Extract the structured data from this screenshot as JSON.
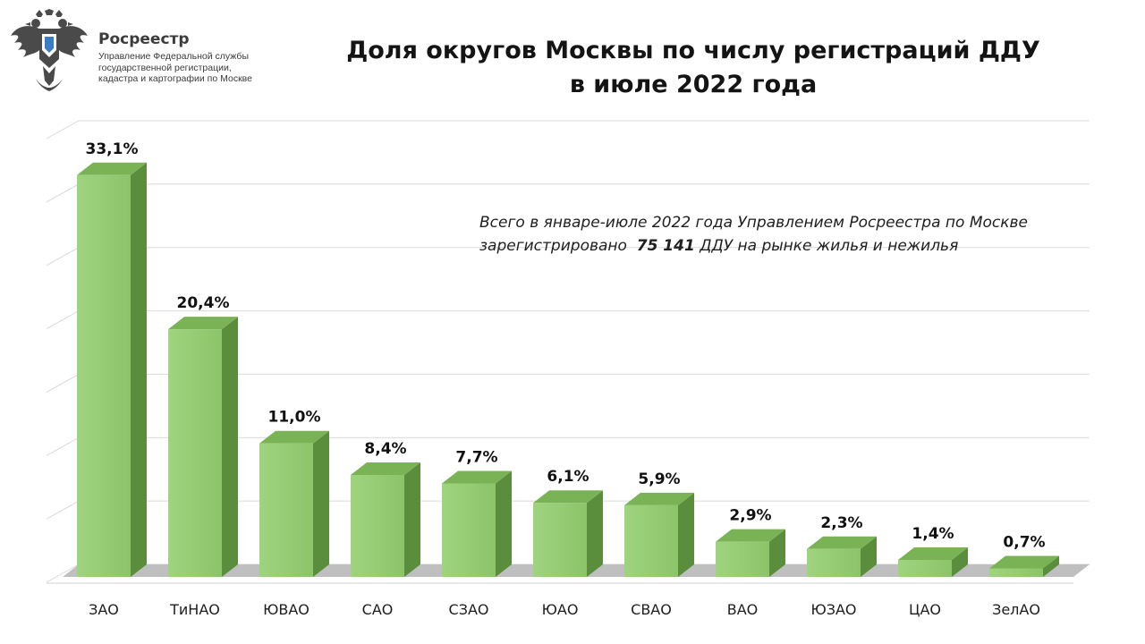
{
  "header": {
    "org_name": "Росреестр",
    "org_subtitle": [
      "Управление Федеральной службы",
      "государственной регистрации,",
      "кадастра и картографии по Москве"
    ],
    "emblem_icon": "double-headed-eagle-emblem-icon"
  },
  "note": {
    "line1": "Всего в январе-июле 2022 года Управлением Росреестра по Москве",
    "line2_prefix": "зарегистрировано",
    "line2_value": "75 141",
    "line2_suffix": "ДДУ на рынке жилья и нежилья"
  },
  "colors": {
    "bar_front": "#8cc46a",
    "bar_side": "#5a8e3c",
    "bar_top": "#7ab356",
    "grid": "#d9d9d9",
    "emblem": "#4a4a4a"
  },
  "chart_data": {
    "type": "bar",
    "title": "Доля округов Москвы по числу регистраций ДДУ в июле 2022 года",
    "title_lines": [
      "Доля округов Москвы по числу регистраций ДДУ",
      "в июле 2022 года"
    ],
    "categories": [
      "ЗАО",
      "ТиНАО",
      "ЮВАО",
      "САО",
      "СЗАО",
      "ЮАО",
      "СВАО",
      "ВАО",
      "ЮЗАО",
      "ЦАО",
      "ЗелАО"
    ],
    "values": [
      33.1,
      20.4,
      11.0,
      8.4,
      7.7,
      6.1,
      5.9,
      2.9,
      2.3,
      1.4,
      0.7
    ],
    "value_labels": [
      "33,1%",
      "20,4%",
      "11,0%",
      "8,4%",
      "7,7%",
      "6,1%",
      "5,9%",
      "2,9%",
      "2,3%",
      "1,4%",
      "0,7%"
    ],
    "ylim": [
      0,
      35
    ],
    "grid": true,
    "style": "3d",
    "xlabel": "",
    "ylabel": ""
  }
}
